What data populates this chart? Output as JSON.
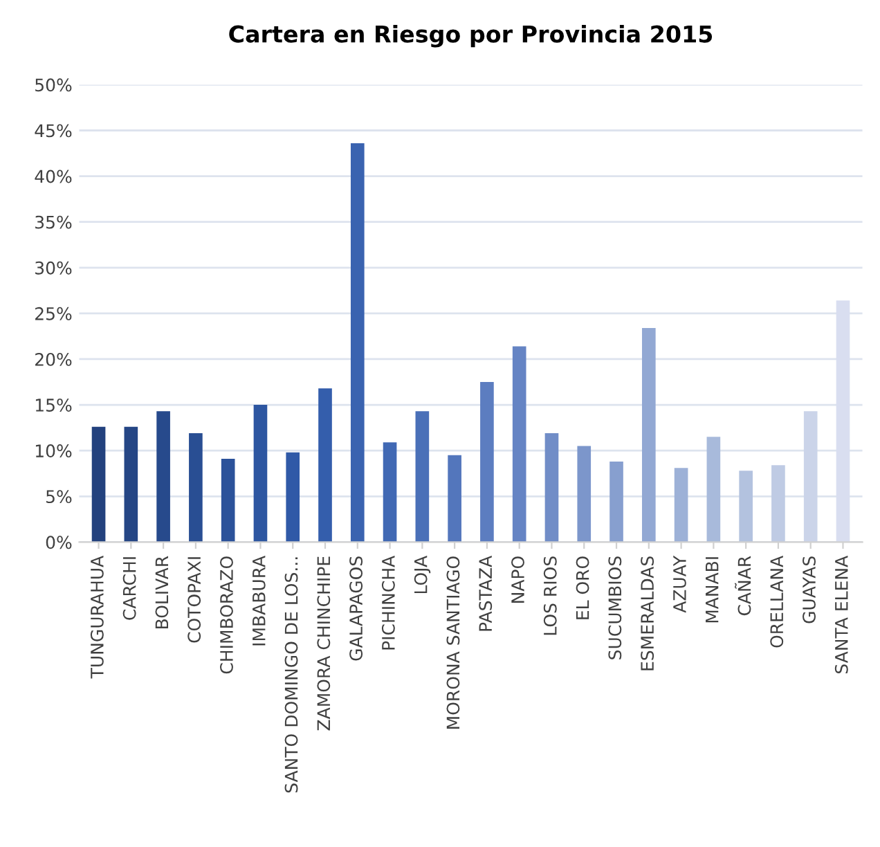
{
  "chart_data": {
    "type": "bar",
    "title": "Cartera en Riesgo por Provincia 2015",
    "categories": [
      "TUNGURAHUA",
      "CARCHI",
      "BOLIVAR",
      "COTOPAXI",
      "CHIMBORAZO",
      "IMBABURA",
      "SANTO DOMINGO DE LOS...",
      "ZAMORA CHINCHIPE",
      "GALAPAGOS",
      "PICHINCHA",
      "LOJA",
      "MORONA SANTIAGO",
      "PASTAZA",
      "NAPO",
      "LOS RIOS",
      "EL ORO",
      "SUCUMBIOS",
      "ESMERALDAS",
      "AZUAY",
      "MANABI",
      "CAÑAR",
      "ORELLANA",
      "GUAYAS",
      "SANTA ELENA"
    ],
    "values": [
      12.6,
      12.6,
      14.3,
      11.9,
      9.1,
      15.0,
      9.8,
      16.8,
      43.6,
      10.9,
      14.3,
      9.5,
      17.5,
      21.4,
      11.9,
      10.5,
      8.8,
      23.4,
      8.1,
      11.5,
      7.8,
      8.4,
      14.3,
      26.4
    ],
    "colors": [
      "#23427e",
      "#254685",
      "#274a8c",
      "#294e93",
      "#2b529a",
      "#2d56a1",
      "#3059a7",
      "#345eac",
      "#3a63b0",
      "#4169b4",
      "#4a70b8",
      "#5376bc",
      "#5c7dc0",
      "#6584c4",
      "#718dc7",
      "#7c96cb",
      "#879fcf",
      "#92a8d3",
      "#9db1d7",
      "#a8badb",
      "#b3c2df",
      "#bfcbe4",
      "#cbd4e9",
      "#d9def0"
    ],
    "ylim": [
      0,
      50
    ],
    "yticks": [
      {
        "value": 0,
        "label": "0%"
      },
      {
        "value": 5,
        "label": "5%"
      },
      {
        "value": 10,
        "label": "10%"
      },
      {
        "value": 15,
        "label": "15%"
      },
      {
        "value": 20,
        "label": "20%"
      },
      {
        "value": 25,
        "label": "25%"
      },
      {
        "value": 30,
        "label": "30%"
      },
      {
        "value": 35,
        "label": "35%"
      },
      {
        "value": 40,
        "label": "40%"
      },
      {
        "value": 45,
        "label": "45%"
      },
      {
        "value": 50,
        "label": "50%"
      }
    ],
    "grid": "y",
    "legend": false
  }
}
